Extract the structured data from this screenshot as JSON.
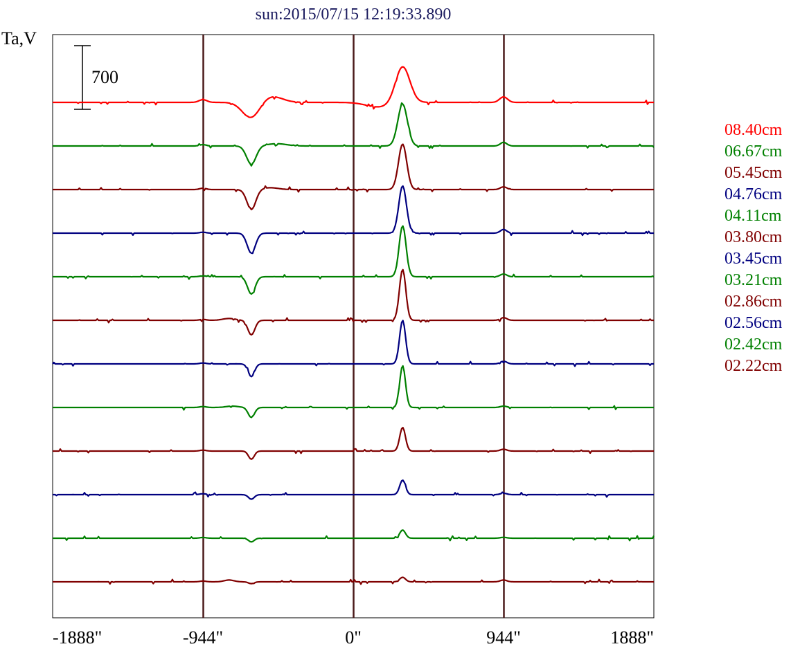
{
  "chart_data": {
    "type": "line",
    "title": "sun:2015/07/15 12:19:33.890",
    "ylabel": "Ta,V",
    "scale_bar_label": "700",
    "scale_bar_value": 700,
    "xlim": [
      -1888,
      1888
    ],
    "x_ticks": [
      {
        "value": -1888,
        "label": "-1888\""
      },
      {
        "value": -944,
        "label": "-944\""
      },
      {
        "value": 0,
        "label": "0\""
      },
      {
        "value": 944,
        "label": "944\""
      },
      {
        "value": 1888,
        "label": "1888\""
      }
    ],
    "vertical_markers": [
      -944,
      0,
      944
    ],
    "colors": {
      "title": "#1a1a5e",
      "frame": "#000000",
      "marker": "#4a1a1a"
    },
    "series": [
      {
        "name": "08.40cm",
        "color": "#ff0000",
        "baseline": 0,
        "features": [
          [
            -944,
            30,
            25
          ],
          [
            -640,
            -180,
            55
          ],
          [
            -520,
            70,
            70
          ],
          [
            160,
            -50,
            80
          ],
          [
            310,
            400,
            45
          ],
          [
            944,
            60,
            25
          ]
        ]
      },
      {
        "name": "06.67cm",
        "color": "#008000",
        "baseline": 1,
        "features": [
          [
            -944,
            15,
            20
          ],
          [
            -640,
            -200,
            30
          ],
          [
            -480,
            25,
            60
          ],
          [
            310,
            460,
            30
          ],
          [
            944,
            40,
            20
          ]
        ]
      },
      {
        "name": "05.45cm",
        "color": "#800000",
        "baseline": 2,
        "features": [
          [
            -944,
            15,
            20
          ],
          [
            -640,
            -220,
            28
          ],
          [
            -520,
            20,
            50
          ],
          [
            310,
            500,
            26
          ],
          [
            944,
            30,
            20
          ]
        ]
      },
      {
        "name": "04.76cm",
        "color": "#000080",
        "baseline": 3,
        "features": [
          [
            -944,
            10,
            20
          ],
          [
            -640,
            -220,
            26
          ],
          [
            310,
            520,
            24
          ],
          [
            944,
            40,
            20
          ]
        ]
      },
      {
        "name": "04.11cm",
        "color": "#008000",
        "baseline": 4,
        "features": [
          [
            -944,
            10,
            20
          ],
          [
            -640,
            -190,
            24
          ],
          [
            310,
            560,
            22
          ],
          [
            944,
            30,
            20
          ]
        ]
      },
      {
        "name": "03.80cm",
        "color": "#800000",
        "baseline": 5,
        "features": [
          [
            -944,
            10,
            20
          ],
          [
            -640,
            -160,
            22
          ],
          [
            -780,
            20,
            40
          ],
          [
            310,
            560,
            20
          ],
          [
            944,
            30,
            20
          ]
        ]
      },
      {
        "name": "03.45cm",
        "color": "#000080",
        "baseline": 6,
        "features": [
          [
            -944,
            10,
            20
          ],
          [
            -640,
            -140,
            20
          ],
          [
            310,
            480,
            19
          ],
          [
            944,
            30,
            20
          ]
        ]
      },
      {
        "name": "03.21cm",
        "color": "#008000",
        "baseline": 7,
        "features": [
          [
            -944,
            10,
            20
          ],
          [
            -640,
            -110,
            20
          ],
          [
            -760,
            15,
            40
          ],
          [
            310,
            460,
            18
          ],
          [
            944,
            15,
            20
          ]
        ]
      },
      {
        "name": "02.86cm",
        "color": "#800000",
        "baseline": 8,
        "features": [
          [
            -944,
            10,
            20
          ],
          [
            -640,
            -90,
            18
          ],
          [
            310,
            260,
            18
          ],
          [
            944,
            20,
            20
          ]
        ]
      },
      {
        "name": "02.56cm",
        "color": "#000080",
        "baseline": 9,
        "features": [
          [
            -944,
            10,
            20
          ],
          [
            -640,
            -50,
            18
          ],
          [
            310,
            160,
            18
          ],
          [
            944,
            15,
            20
          ]
        ]
      },
      {
        "name": "02.42cm",
        "color": "#008000",
        "baseline": 10,
        "features": [
          [
            -944,
            8,
            20
          ],
          [
            -640,
            -40,
            18
          ],
          [
            310,
            90,
            18
          ],
          [
            944,
            10,
            20
          ]
        ]
      },
      {
        "name": "02.22cm",
        "color": "#800000",
        "baseline": 11,
        "features": [
          [
            -944,
            8,
            20
          ],
          [
            -780,
            20,
            30
          ],
          [
            -640,
            -20,
            18
          ],
          [
            310,
            50,
            18
          ],
          [
            944,
            20,
            20
          ]
        ]
      }
    ],
    "grid": false,
    "legend_position": "right"
  }
}
